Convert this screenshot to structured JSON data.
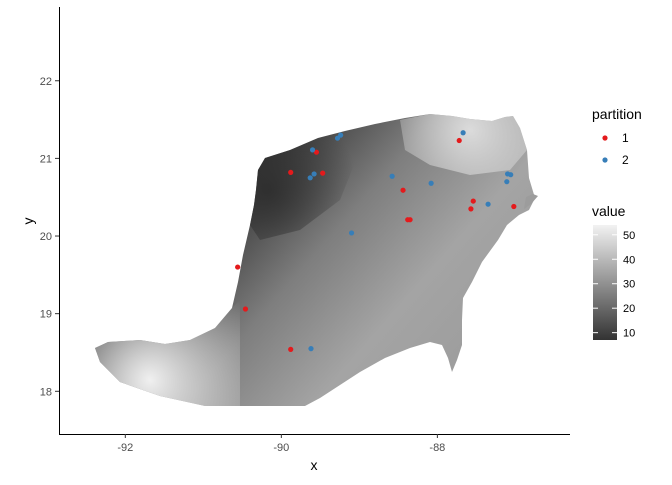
{
  "chart_data": {
    "type": "scatter",
    "xlabel": "x",
    "ylabel": "y",
    "xlim": [
      -92.85,
      -86.3
    ],
    "ylim": [
      17.45,
      22.95
    ],
    "x_ticks": [
      -92,
      -90,
      -88
    ],
    "x_tick_labels": [
      "-92",
      "-90",
      "-88"
    ],
    "y_ticks": [
      18,
      19,
      20,
      21,
      22
    ],
    "y_tick_labels": [
      "18",
      "19",
      "20",
      "21",
      "22"
    ],
    "grid": false,
    "background": "raster",
    "raster_fill": {
      "legend_title": "value",
      "range": [
        7,
        54
      ],
      "ticks": [
        10,
        20,
        30,
        40,
        50
      ],
      "tick_labels": [
        "10",
        "20",
        "30",
        "40",
        "50"
      ],
      "color_low": "#333333",
      "color_high": "#f2f2f2"
    },
    "legend": {
      "title": "partition",
      "placement": "right"
    },
    "series": [
      {
        "name": "1",
        "color": "#e41a1c",
        "points": [
          [
            -89.55,
            21.08
          ],
          [
            -89.88,
            20.82
          ],
          [
            -89.47,
            20.81
          ],
          [
            -88.44,
            20.59
          ],
          [
            -88.38,
            20.21
          ],
          [
            -88.35,
            20.21
          ],
          [
            -87.72,
            21.23
          ],
          [
            -87.54,
            20.45
          ],
          [
            -87.57,
            20.35
          ],
          [
            -87.02,
            20.38
          ],
          [
            -90.56,
            19.6
          ],
          [
            -90.46,
            19.06
          ],
          [
            -89.88,
            18.54
          ]
        ]
      },
      {
        "name": "2",
        "color": "#377eb8",
        "points": [
          [
            -89.6,
            21.11
          ],
          [
            -89.28,
            21.26
          ],
          [
            -89.24,
            21.3
          ],
          [
            -87.67,
            21.33
          ],
          [
            -89.58,
            20.8
          ],
          [
            -89.63,
            20.75
          ],
          [
            -88.58,
            20.77
          ],
          [
            -88.08,
            20.68
          ],
          [
            -87.1,
            20.8
          ],
          [
            -87.06,
            20.79
          ],
          [
            -87.11,
            20.7
          ],
          [
            -87.35,
            20.41
          ],
          [
            -89.1,
            20.04
          ],
          [
            -89.62,
            18.55
          ]
        ]
      }
    ]
  }
}
